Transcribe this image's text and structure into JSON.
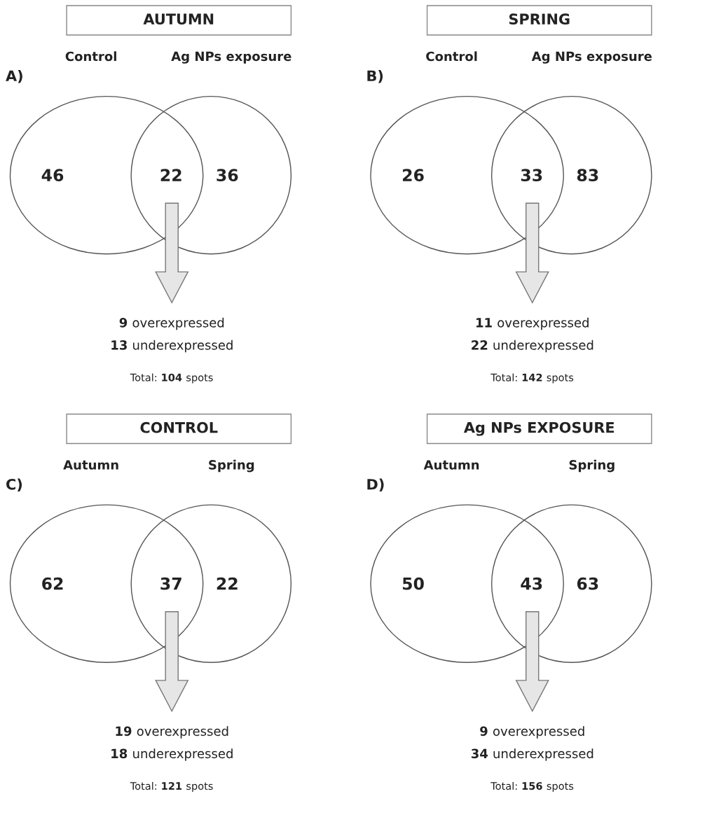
{
  "chart_data": [
    {
      "type": "other",
      "title": "AUTUMN",
      "categories": [
        "Control",
        null,
        "Ag NPs exposure"
      ],
      "values": [
        46,
        22,
        36
      ],
      "data_labels": true,
      "annotations": [
        "A)",
        "9 overexpressed",
        "13 underexpressed",
        "Total: 104 spots"
      ]
    },
    {
      "type": "other",
      "title": "SPRING",
      "categories": [
        "Control",
        null,
        "Ag NPs exposure"
      ],
      "values": [
        26,
        33,
        83
      ],
      "data_labels": true,
      "annotations": [
        "B)",
        "11 overexpressed",
        "22 underexpressed",
        "Total: 142 spots"
      ]
    },
    {
      "type": "other",
      "title": "CONTROL",
      "categories": [
        "Autumn",
        null,
        "Spring"
      ],
      "values": [
        62,
        37,
        22
      ],
      "data_labels": true,
      "annotations": [
        "C)",
        "19 overexpressed",
        "18 underexpressed",
        "Total: 121 spots"
      ]
    },
    {
      "type": "other",
      "title": "Ag NPs EXPOSURE",
      "categories": [
        "Autumn",
        null,
        "Spring"
      ],
      "values": [
        50,
        43,
        63
      ],
      "data_labels": true,
      "annotations": [
        "D)",
        "9 overexpressed",
        "34 underexpressed",
        "Total: 156 spots"
      ]
    }
  ]
}
